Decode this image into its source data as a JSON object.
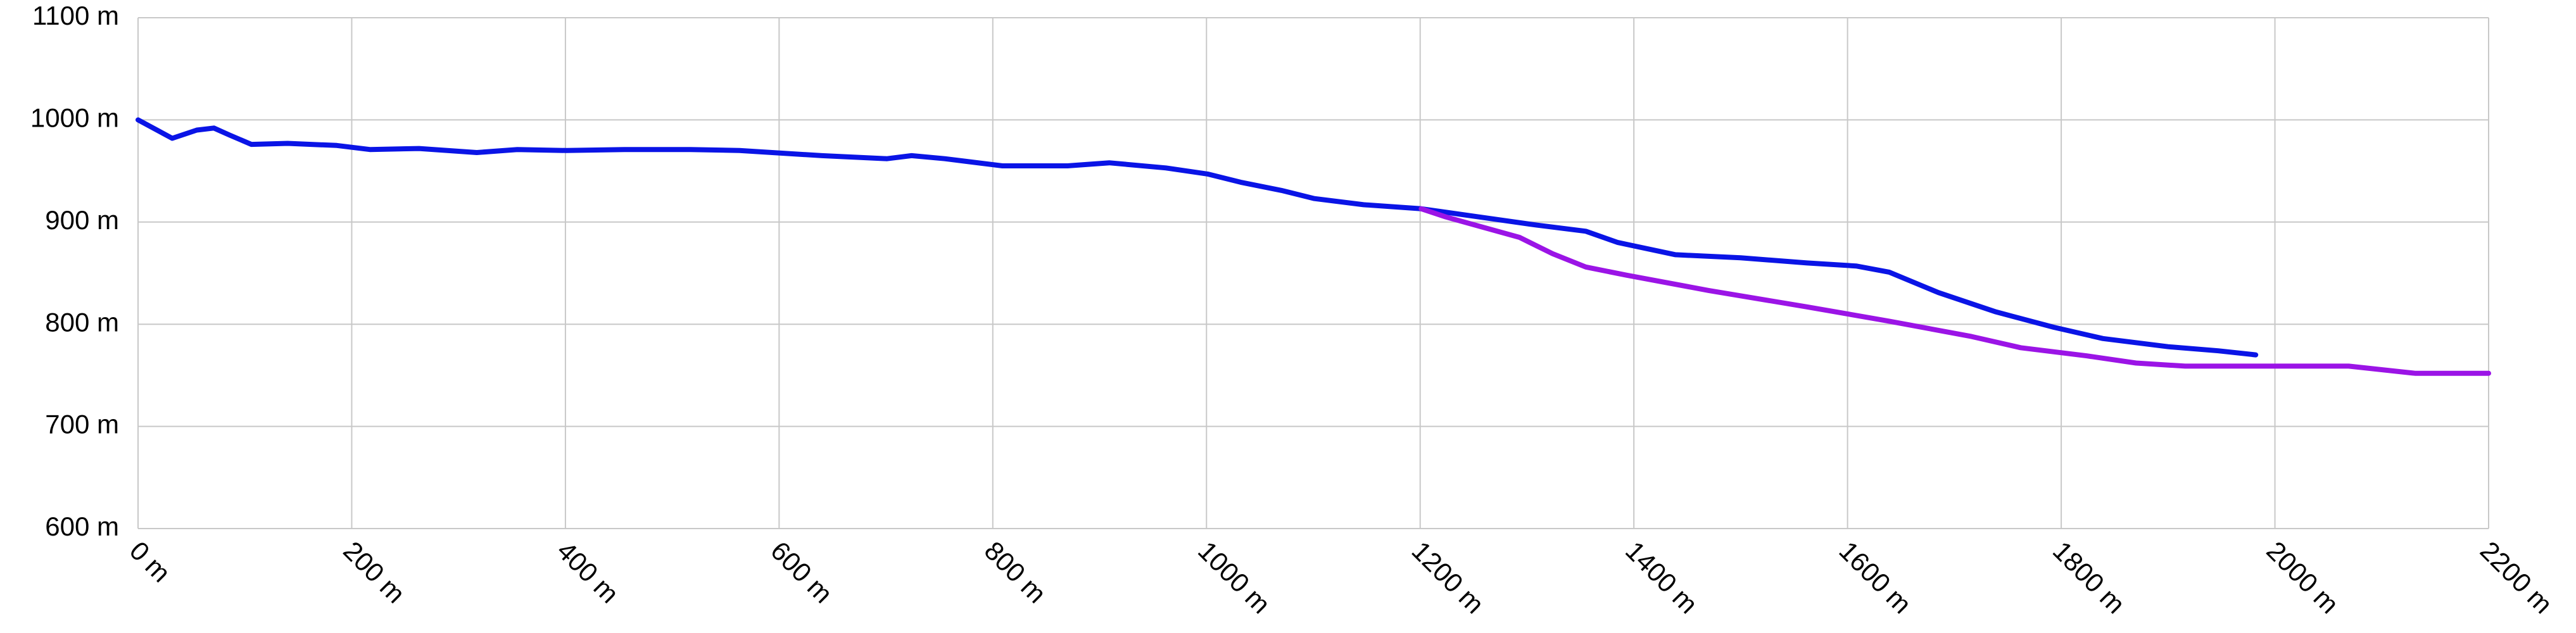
{
  "chart_data": {
    "type": "line",
    "xlim": [
      0,
      2200
    ],
    "xticks": [
      {
        "value": 0,
        "label": "0 m"
      },
      {
        "value": 200,
        "label": "200 m"
      },
      {
        "value": 400,
        "label": "400 m"
      },
      {
        "value": 600,
        "label": "600 m"
      },
      {
        "value": 800,
        "label": "800 m"
      },
      {
        "value": 1000,
        "label": "1000 m"
      },
      {
        "value": 1200,
        "label": "1200 m"
      },
      {
        "value": 1400,
        "label": "1400 m"
      },
      {
        "value": 1600,
        "label": "1600 m"
      },
      {
        "value": 1800,
        "label": "1800 m"
      },
      {
        "value": 2000,
        "label": "2000 m"
      },
      {
        "value": 2200,
        "label": "2200 m"
      }
    ],
    "ylim": [
      600,
      1100
    ],
    "yticks": [
      {
        "value": 600,
        "label": "600 m"
      },
      {
        "value": 700,
        "label": "700 m"
      },
      {
        "value": 800,
        "label": "800 m"
      },
      {
        "value": 900,
        "label": "900 m"
      },
      {
        "value": 1000,
        "label": "1000 m"
      },
      {
        "value": 1100,
        "label": "1100 m"
      }
    ],
    "grid": true,
    "series": [
      {
        "color": "#0a14e6",
        "x": [
          0,
          32,
          55,
          71,
          86,
          106,
          140,
          186,
          217,
          263,
          317,
          355,
          401,
          455,
          517,
          563,
          640,
          701,
          724,
          755,
          809,
          870,
          909,
          962,
          1001,
          1032,
          1070,
          1101,
          1147,
          1201,
          1255,
          1309,
          1355,
          1385,
          1439,
          1500,
          1562,
          1608,
          1639,
          1685,
          1739,
          1793,
          1839,
          1900,
          1947,
          1982
        ],
        "values": [
          1000,
          982,
          990,
          992,
          985,
          976,
          977,
          975,
          971,
          972,
          968,
          971,
          970,
          971,
          971,
          970,
          965,
          962,
          965,
          962,
          955,
          955,
          958,
          953,
          947,
          939,
          931,
          923,
          917,
          913,
          905,
          897,
          891,
          880,
          868,
          865,
          860,
          857,
          851,
          831,
          812,
          797,
          786,
          778,
          774,
          770
        ]
      },
      {
        "color": "#9b14e6",
        "x": [
          1201,
          1224,
          1262,
          1293,
          1324,
          1355,
          1393,
          1470,
          1562,
          1639,
          1716,
          1762,
          1824,
          1870,
          1916,
          2000,
          2069,
          2131,
          2200
        ],
        "values": [
          913,
          905,
          894,
          885,
          869,
          856,
          848,
          833,
          817,
          803,
          788,
          777,
          769,
          762,
          759,
          759,
          759,
          752,
          752
        ]
      }
    ]
  }
}
